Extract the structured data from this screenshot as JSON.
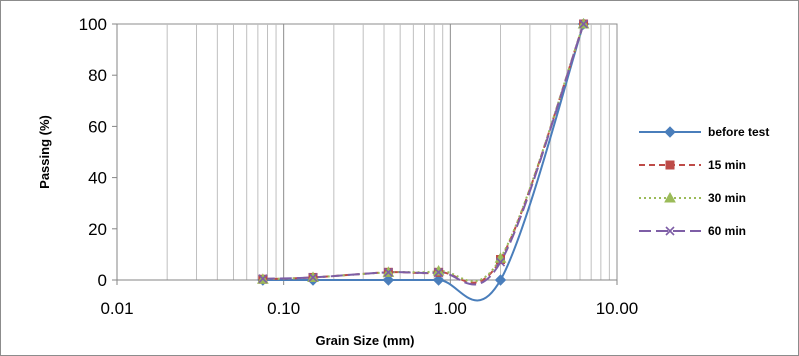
{
  "chart_data": {
    "type": "line",
    "title": "",
    "xlabel": "Grain Size (mm)",
    "ylabel": "Passing (%)",
    "x_scale": "log",
    "xlim": [
      0.01,
      10
    ],
    "ylim": [
      0,
      100
    ],
    "x_ticks": [
      "0.01",
      "0.10",
      "1.00",
      "10.00"
    ],
    "y_ticks": [
      "0",
      "20",
      "40",
      "60",
      "80",
      "100"
    ],
    "grid": "vertical minor and major lines, no horizontal lines",
    "legend_position": "right",
    "series": [
      {
        "name": "before test",
        "color": "#4a7ebb",
        "marker": "diamond",
        "dash": "solid",
        "x": [
          0.075,
          0.15,
          0.425,
          0.85,
          2.0,
          6.3
        ],
        "y": [
          0,
          0,
          0,
          0,
          0,
          100
        ]
      },
      {
        "name": "15 min",
        "color": "#be4b48",
        "marker": "square",
        "dash": "dashed",
        "x": [
          0.075,
          0.15,
          0.425,
          0.85,
          2.0,
          6.3
        ],
        "y": [
          0.3,
          1,
          3,
          3,
          8,
          100
        ]
      },
      {
        "name": "30 min",
        "color": "#9bbb59",
        "marker": "triangle",
        "dash": "dotted",
        "x": [
          0.075,
          0.15,
          0.425,
          0.85,
          2.0,
          6.3
        ],
        "y": [
          0.3,
          1,
          3,
          3.5,
          8.5,
          100
        ]
      },
      {
        "name": "60 min",
        "color": "#7e5ea6",
        "marker": "x",
        "dash": "longdash",
        "x": [
          0.075,
          0.15,
          0.425,
          0.85,
          2.0,
          6.3
        ],
        "y": [
          0.5,
          1,
          3,
          3,
          7,
          100
        ]
      }
    ]
  }
}
